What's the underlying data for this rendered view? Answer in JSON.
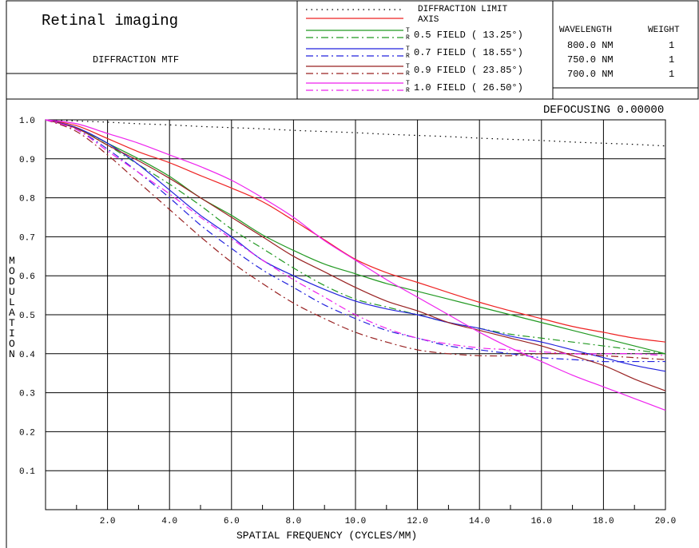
{
  "header": {
    "title": "Retinal imaging",
    "subtitle": "DIFFRACTION MTF",
    "defocusing": "DEFOCUSING 0.00000",
    "wavelength_header": "WAVELENGTH",
    "weight_header": "WEIGHT",
    "wavelengths": [
      {
        "wavelength": "800.0 NM",
        "weight": "1"
      },
      {
        "wavelength": "750.0 NM",
        "weight": "1"
      },
      {
        "wavelength": "700.0 NM",
        "weight": "1"
      }
    ]
  },
  "legend": [
    {
      "label": "DIFFRACTION LIMIT",
      "color": "#000000",
      "style": "dotted"
    },
    {
      "label": "AXIS",
      "color": "#ee2222",
      "style": "solid"
    },
    {
      "label": "0.5 FIELD ( 13.25°)",
      "color": "#229922",
      "tr": true
    },
    {
      "label": "0.7 FIELD ( 18.55°)",
      "color": "#2222dd",
      "tr": true
    },
    {
      "label": "0.9 FIELD ( 23.85°)",
      "color": "#992222",
      "tr": true
    },
    {
      "label": "1.0 FIELD ( 26.50°)",
      "color": "#ee22ee",
      "tr": true
    }
  ],
  "tr_labels": {
    "t": "T",
    "r": "R"
  },
  "chart_data": {
    "type": "line",
    "xlabel": "SPATIAL FREQUENCY (CYCLES/MM)",
    "ylabel": "MODULATION",
    "xlim": [
      0,
      20
    ],
    "ylim": [
      0,
      1
    ],
    "x_ticks": [
      "2.0",
      "4.0",
      "6.0",
      "8.0",
      "10.0",
      "12.0",
      "14.0",
      "16.0",
      "18.0",
      "20.0"
    ],
    "y_ticks": [
      "1.0",
      "0.9",
      "0.8",
      "0.7",
      "0.6",
      "0.5",
      "0.4",
      "0.3",
      "0.2",
      "0.1"
    ],
    "grid": true,
    "x": [
      0,
      1,
      2,
      3,
      4,
      5,
      6,
      7,
      8,
      9,
      10,
      11,
      12,
      13,
      14,
      15,
      16,
      17,
      18,
      19,
      20
    ],
    "series": [
      {
        "name": "DIFFRACTION LIMIT",
        "color": "#000000",
        "dash": "dotted",
        "values": [
          1.0,
          0.997,
          0.994,
          0.99,
          0.987,
          0.983,
          0.98,
          0.977,
          0.973,
          0.97,
          0.967,
          0.963,
          0.96,
          0.957,
          0.953,
          0.95,
          0.947,
          0.943,
          0.94,
          0.937,
          0.933
        ]
      },
      {
        "name": "AXIS",
        "color": "#ee2222",
        "dash": "solid",
        "values": [
          1.0,
          0.985,
          0.952,
          0.918,
          0.89,
          0.857,
          0.825,
          0.79,
          0.742,
          0.692,
          0.642,
          0.608,
          0.583,
          0.557,
          0.532,
          0.51,
          0.49,
          0.47,
          0.455,
          0.44,
          0.43
        ]
      },
      {
        "name": "0.5 FIELD T",
        "color": "#229922",
        "dash": "solid",
        "values": [
          1.0,
          0.98,
          0.94,
          0.9,
          0.855,
          0.8,
          0.755,
          0.705,
          0.665,
          0.63,
          0.605,
          0.58,
          0.56,
          0.54,
          0.52,
          0.5,
          0.48,
          0.46,
          0.44,
          0.42,
          0.4
        ]
      },
      {
        "name": "0.5 FIELD R",
        "color": "#229922",
        "dash": "dashdot",
        "values": [
          1.0,
          0.978,
          0.935,
          0.885,
          0.835,
          0.78,
          0.72,
          0.67,
          0.62,
          0.575,
          0.54,
          0.52,
          0.5,
          0.48,
          0.465,
          0.45,
          0.44,
          0.43,
          0.42,
          0.41,
          0.4
        ]
      },
      {
        "name": "0.7 FIELD T",
        "color": "#2222dd",
        "dash": "solid",
        "values": [
          1.0,
          0.98,
          0.94,
          0.885,
          0.82,
          0.755,
          0.7,
          0.64,
          0.6,
          0.565,
          0.535,
          0.515,
          0.5,
          0.48,
          0.465,
          0.445,
          0.43,
          0.41,
          0.39,
          0.37,
          0.355
        ]
      },
      {
        "name": "0.7 FIELD R",
        "color": "#2222dd",
        "dash": "dashdot",
        "values": [
          1.0,
          0.975,
          0.925,
          0.865,
          0.8,
          0.73,
          0.67,
          0.615,
          0.57,
          0.525,
          0.49,
          0.46,
          0.44,
          0.42,
          0.41,
          0.4,
          0.39,
          0.385,
          0.38,
          0.38,
          0.38
        ]
      },
      {
        "name": "0.9 FIELD T",
        "color": "#992222",
        "dash": "solid",
        "values": [
          1.0,
          0.978,
          0.935,
          0.895,
          0.85,
          0.8,
          0.75,
          0.7,
          0.65,
          0.61,
          0.57,
          0.535,
          0.51,
          0.48,
          0.46,
          0.44,
          0.42,
          0.395,
          0.37,
          0.335,
          0.305
        ]
      },
      {
        "name": "0.9 FIELD R",
        "color": "#992222",
        "dash": "dashdot",
        "values": [
          1.0,
          0.97,
          0.91,
          0.84,
          0.77,
          0.7,
          0.635,
          0.58,
          0.53,
          0.49,
          0.455,
          0.43,
          0.41,
          0.4,
          0.395,
          0.395,
          0.4,
          0.4,
          0.395,
          0.39,
          0.385
        ]
      },
      {
        "name": "1.0 FIELD T",
        "color": "#ee22ee",
        "dash": "solid",
        "values": [
          1.0,
          0.99,
          0.965,
          0.94,
          0.91,
          0.88,
          0.845,
          0.8,
          0.75,
          0.69,
          0.64,
          0.59,
          0.545,
          0.5,
          0.455,
          0.415,
          0.38,
          0.345,
          0.315,
          0.285,
          0.255
        ]
      },
      {
        "name": "1.0 FIELD R",
        "color": "#ee22ee",
        "dash": "dashdot",
        "values": [
          1.0,
          0.975,
          0.92,
          0.865,
          0.81,
          0.75,
          0.695,
          0.64,
          0.59,
          0.545,
          0.5,
          0.465,
          0.44,
          0.425,
          0.415,
          0.41,
          0.405,
          0.4,
          0.4,
          0.4,
          0.395
        ]
      }
    ]
  }
}
